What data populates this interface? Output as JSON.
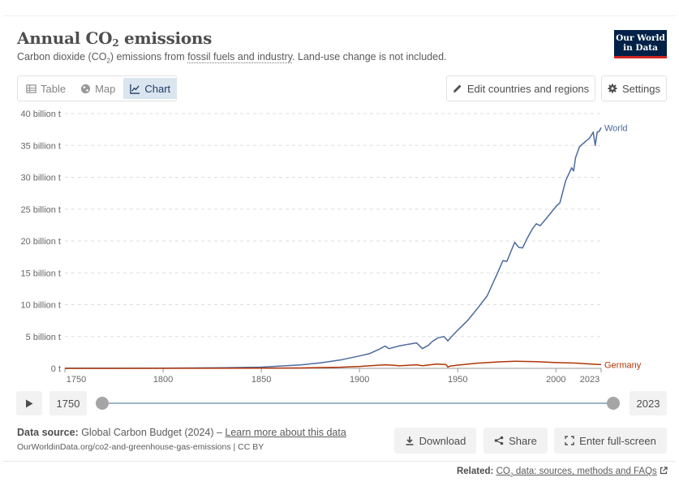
{
  "header": {
    "title_main": "Annual CO",
    "title_sub": "2",
    "title_tail": " emissions",
    "subtitle_pre": "Carbon dioxide (CO",
    "subtitle_sub": "2",
    "subtitle_mid": ") emissions from ",
    "subtitle_link": "fossil fuels and industry",
    "subtitle_post": ". Land-use change is not included.",
    "logo_line1": "Our World",
    "logo_line2": "in Data"
  },
  "tabs": [
    {
      "label": "Table",
      "icon": "table-icon",
      "active": false
    },
    {
      "label": "Map",
      "icon": "globe-icon",
      "active": false
    },
    {
      "label": "Chart",
      "icon": "line-chart-icon",
      "active": true
    }
  ],
  "toolbar": {
    "edit_label": "Edit countries and regions",
    "settings_label": "Settings"
  },
  "timeline": {
    "start_year": "1750",
    "end_year": "2023"
  },
  "footer": {
    "source_label": "Data source:",
    "source_text": " Global Carbon Budget (2024) – ",
    "learn_more": "Learn more about this data",
    "url": "OurWorldinData.org/co2-and-greenhouse-gas-emissions | CC BY",
    "download_label": "Download",
    "share_label": "Share",
    "fullscreen_label": "Enter full-screen",
    "related_label": "Related:",
    "related_link_pre": "CO",
    "related_link_sub": "2",
    "related_link_post": " data: sources, methods and FAQs"
  },
  "colors": {
    "world": "#4c6a9c",
    "germany": "#b13507",
    "accent": "#002147"
  },
  "chart_data": {
    "type": "line",
    "xlim": [
      1750,
      2023
    ],
    "ylim": [
      0,
      40000000000
    ],
    "x_ticks": [
      "1750",
      "1800",
      "1850",
      "1900",
      "1950",
      "2000",
      "2023"
    ],
    "y_ticks": [
      "0 t",
      "5 billion t",
      "10 billion t",
      "15 billion t",
      "20 billion t",
      "25 billion t",
      "30 billion t",
      "35 billion t",
      "40 billion t"
    ],
    "grid": "horizontal dashed",
    "series": [
      {
        "name": "World",
        "color": "#4c6a9c",
        "x": [
          1750,
          1800,
          1830,
          1850,
          1870,
          1880,
          1890,
          1900,
          1905,
          1910,
          1913,
          1915,
          1920,
          1925,
          1929,
          1932,
          1935,
          1937,
          1940,
          1943,
          1945,
          1946,
          1950,
          1955,
          1960,
          1965,
          1970,
          1973,
          1975,
          1979,
          1981,
          1983,
          1985,
          1988,
          1990,
          1992,
          1995,
          2000,
          2002,
          2005,
          2008,
          2009,
          2010,
          2012,
          2015,
          2017,
          2019,
          2020,
          2021,
          2022,
          2023
        ],
        "y": [
          9400000,
          28000000,
          91000000,
          197000000,
          530000000,
          860000000,
          1300000000,
          1950000000,
          2300000000,
          3000000000,
          3500000000,
          3100000000,
          3500000000,
          3800000000,
          4000000000,
          3100000000,
          3600000000,
          4200000000,
          4800000000,
          5000000000,
          4300000000,
          4700000000,
          6000000000,
          7500000000,
          9400000000,
          11400000000,
          14800000000,
          16900000000,
          16800000000,
          19800000000,
          19000000000,
          18900000000,
          20200000000,
          21900000000,
          22700000000,
          22400000000,
          23500000000,
          25400000000,
          26000000000,
          29500000000,
          31500000000,
          31000000000,
          33100000000,
          34800000000,
          35600000000,
          36100000000,
          37100000000,
          35000000000,
          37100000000,
          37200000000,
          37800000000
        ]
      },
      {
        "name": "Germany",
        "color": "#b13507",
        "x": [
          1750,
          1850,
          1870,
          1890,
          1900,
          1913,
          1918,
          1920,
          1929,
          1932,
          1939,
          1944,
          1945,
          1946,
          1950,
          1960,
          1970,
          1979,
          1990,
          2000,
          2010,
          2020,
          2023
        ],
        "y": [
          0,
          20000000,
          60000000,
          180000000,
          310000000,
          560000000,
          480000000,
          390000000,
          560000000,
          420000000,
          680000000,
          600000000,
          200000000,
          340000000,
          510000000,
          810000000,
          1010000000,
          1120000000,
          1050000000,
          900000000,
          830000000,
          640000000,
          600000000
        ]
      }
    ]
  }
}
